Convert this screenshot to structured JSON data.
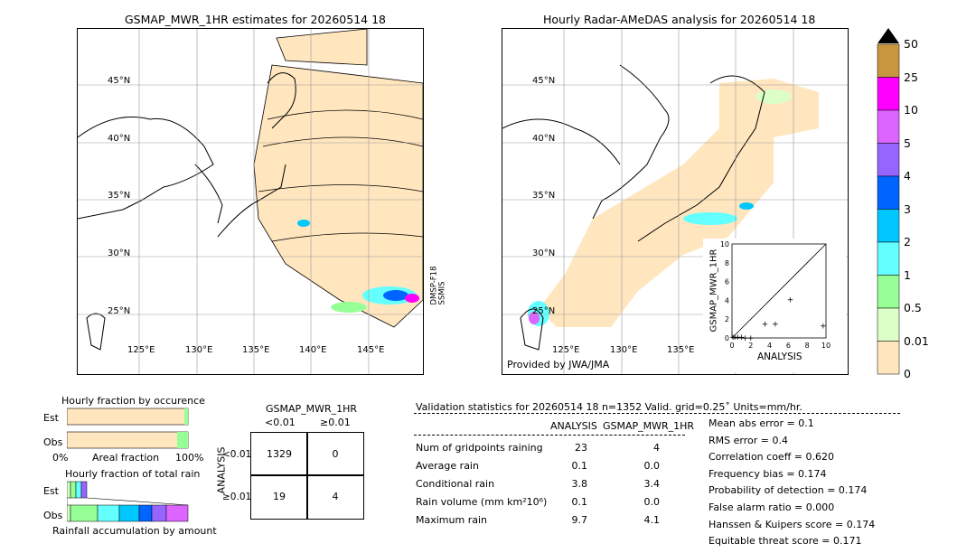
{
  "left_map": {
    "title": "GSMAP_MWR_1HR estimates for 20260514 18",
    "satellite_label": "DMSP-F18\nSSMIS",
    "lat_labels": [
      "45°N",
      "40°N",
      "35°N",
      "30°N",
      "25°N"
    ],
    "lon_labels": [
      "125°E",
      "130°E",
      "135°E",
      "140°E",
      "145°E"
    ]
  },
  "right_map": {
    "title": "Hourly Radar-AMeDAS analysis for 20260514 18",
    "credit": "Provided by JWA/JMA",
    "lat_labels": [
      "45°N",
      "40°N",
      "35°N",
      "30°N",
      "25°N"
    ],
    "lon_labels": [
      "125°E",
      "130°E",
      "135°E"
    ]
  },
  "scatter_inset": {
    "xlabel": "ANALYSIS",
    "ylabel": "GSMAP_MWR_1HR",
    "ticks": [
      "0",
      "2",
      "4",
      "6",
      "8",
      "10"
    ]
  },
  "colorbar": {
    "labels": [
      "50",
      "25",
      "10",
      "5",
      "4",
      "3",
      "2",
      "1",
      "0.5",
      "0.01",
      "0"
    ],
    "colors": [
      "#c8963c",
      "#ff00ff",
      "#dc64ff",
      "#9664ff",
      "#0064ff",
      "#00c8ff",
      "#64ffff",
      "#96ff96",
      "#dcffc8",
      "#ffe6be"
    ]
  },
  "fraction_occurrence": {
    "title": "Hourly fraction by occurence",
    "row_est": "Est",
    "row_obs": "Obs",
    "axis_left": "0%",
    "axis_mid": "Areal fraction",
    "axis_right": "100%"
  },
  "fraction_rain": {
    "title": "Hourly fraction of total rain",
    "row_est": "Est",
    "row_obs": "Obs",
    "axis_label": "Rainfall accumulation by amount"
  },
  "contingency": {
    "header": "GSMAP_MWR_1HR",
    "col_lt": "<0.01",
    "col_ge": "≥0.01",
    "side_label": "ANALYSIS",
    "row_lt": "<0.01",
    "row_ge": "≥0.01",
    "cells": [
      "1329",
      "0",
      "19",
      "4"
    ]
  },
  "validation": {
    "header": "Validation statistics for 20260514 18  n=1352 Valid. grid=0.25˚ Units=mm/hr.",
    "col_analysis": "ANALYSIS",
    "col_gsmap": "GSMAP_MWR_1HR",
    "rows": [
      {
        "label": "Num of gridpoints raining",
        "analysis": "23",
        "gsmap": "4"
      },
      {
        "label": "Average rain",
        "analysis": "0.1",
        "gsmap": "0.0"
      },
      {
        "label": "Conditional rain",
        "analysis": "3.8",
        "gsmap": "3.4"
      },
      {
        "label": "Rain volume (mm km²10⁶)",
        "analysis": "0.1",
        "gsmap": "0.0"
      },
      {
        "label": "Maximum rain",
        "analysis": "9.7",
        "gsmap": "4.1"
      }
    ],
    "scores": [
      "Mean abs error =    0.1",
      "RMS error =    0.4",
      "Correlation coeff =  0.620",
      "Frequency bias =  0.174",
      "Probability of detection =  0.174",
      "False alarm ratio =  0.000",
      "Hanssen & Kuipers score =  0.174",
      "Equitable threat score =  0.171"
    ]
  },
  "chart_data": {
    "type": "scatter",
    "xlabel": "ANALYSIS",
    "ylabel": "GSMAP_MWR_1HR",
    "xlim": [
      0,
      10
    ],
    "ylim": [
      0,
      10
    ],
    "points": [
      {
        "x": 0.1,
        "y": 0.1
      },
      {
        "x": 0.3,
        "y": 0.1
      },
      {
        "x": 0.6,
        "y": 0.1
      },
      {
        "x": 1.0,
        "y": 0.1
      },
      {
        "x": 1.4,
        "y": 0.0
      },
      {
        "x": 2.0,
        "y": 0.0
      },
      {
        "x": 3.5,
        "y": 1.5
      },
      {
        "x": 4.6,
        "y": 1.5
      },
      {
        "x": 6.2,
        "y": 4.1
      },
      {
        "x": 9.7,
        "y": 1.3
      }
    ]
  }
}
